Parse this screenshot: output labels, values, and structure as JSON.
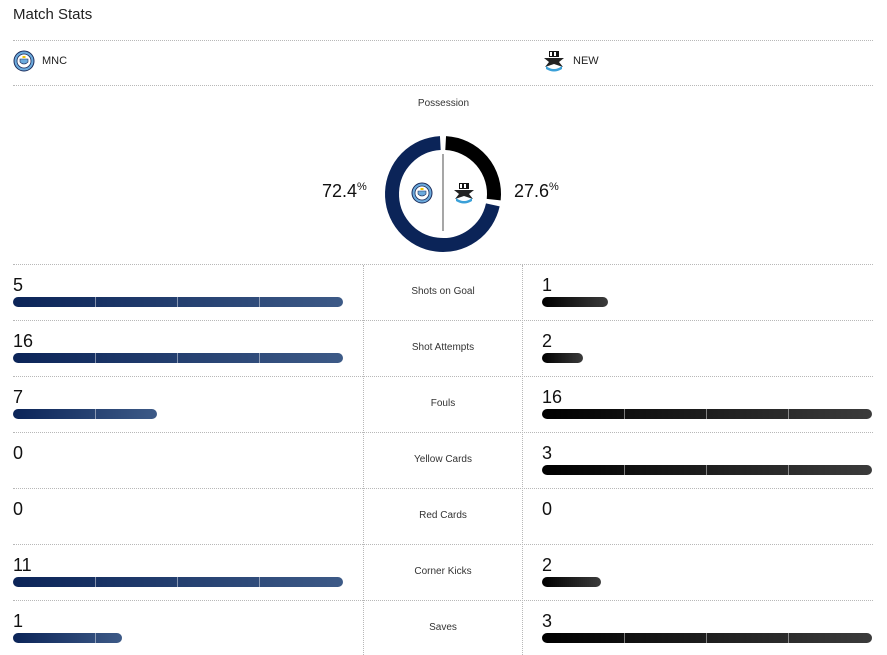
{
  "header": {
    "title": "Match Stats"
  },
  "teams": {
    "home": {
      "abbr": "MNC",
      "color": "#0b2458"
    },
    "away": {
      "abbr": "NEW",
      "color": "#000000"
    }
  },
  "possession": {
    "label": "Possession",
    "home_value": "72.4",
    "away_value": "27.6",
    "unit": "%"
  },
  "stats": [
    {
      "label": "Shots on Goal",
      "home": "5",
      "away": "1",
      "home_fraction": 1.0,
      "away_fraction": 0.2
    },
    {
      "label": "Shot Attempts",
      "home": "16",
      "away": "2",
      "home_fraction": 1.0,
      "away_fraction": 0.125
    },
    {
      "label": "Fouls",
      "home": "7",
      "away": "16",
      "home_fraction": 0.4375,
      "away_fraction": 1.0
    },
    {
      "label": "Yellow Cards",
      "home": "0",
      "away": "3",
      "home_fraction": 0,
      "away_fraction": 1.0
    },
    {
      "label": "Red Cards",
      "home": "0",
      "away": "0",
      "home_fraction": 0,
      "away_fraction": 0
    },
    {
      "label": "Corner Kicks",
      "home": "11",
      "away": "2",
      "home_fraction": 1.0,
      "away_fraction": 0.18
    },
    {
      "label": "Saves",
      "home": "1",
      "away": "3",
      "home_fraction": 0.33,
      "away_fraction": 1.0
    }
  ]
}
